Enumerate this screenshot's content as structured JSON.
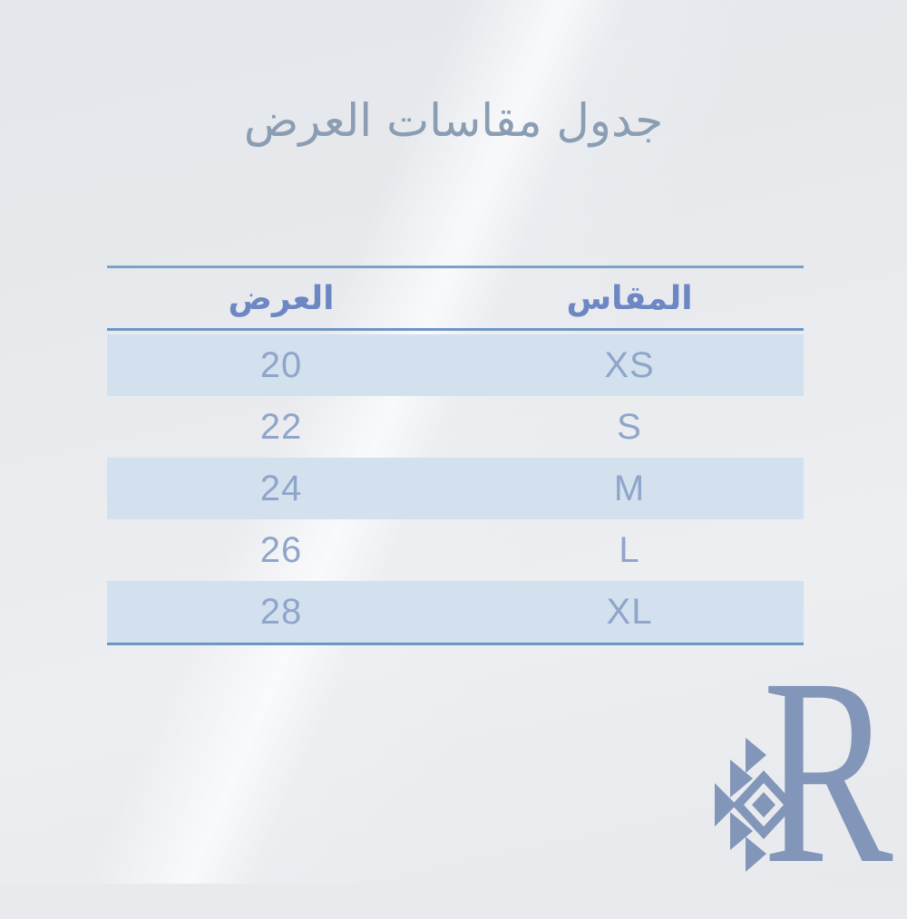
{
  "title": "جدول مقاسات العرض",
  "table": {
    "columns": [
      {
        "key": "size",
        "label": "المقاس"
      },
      {
        "key": "width",
        "label": "العرض"
      }
    ],
    "rows": [
      {
        "size": "XS",
        "width": "20"
      },
      {
        "size": "S",
        "width": "22"
      },
      {
        "size": "M",
        "width": "24"
      },
      {
        "size": "L",
        "width": "26"
      },
      {
        "size": "XL",
        "width": "28"
      }
    ]
  },
  "watermark": {
    "letter": "R"
  },
  "colors": {
    "title_text": "#8b9db2",
    "header_text": "#6d87c4",
    "value_text": "#8fa5ca",
    "rule": "#6f96c3",
    "rule_light": "#7ba2ca",
    "row_band": "#d3e0ee",
    "watermark": "#8296ba"
  },
  "chart_data": {
    "type": "table",
    "title": "جدول مقاسات العرض",
    "columns": [
      "المقاس",
      "العرض"
    ],
    "rows": [
      [
        "XS",
        "20"
      ],
      [
        "S",
        "22"
      ],
      [
        "M",
        "24"
      ],
      [
        "L",
        "26"
      ],
      [
        "XL",
        "28"
      ]
    ],
    "layout_hints": {
      "direction": "rtl",
      "striped_rows": [
        0,
        2,
        4
      ],
      "header_rule": true,
      "bottom_rule": true
    }
  }
}
